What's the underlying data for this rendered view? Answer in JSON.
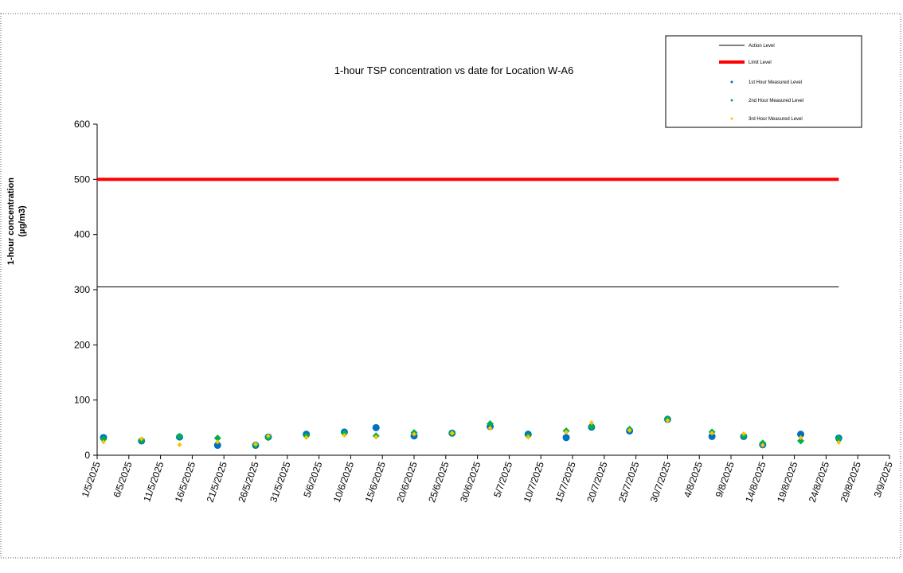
{
  "chart_data": {
    "type": "scatter",
    "title": "1-hour TSP concentration vs date for Location  W-A6",
    "ylabel": [
      "1-hour concentration",
      "(µg/m3)"
    ],
    "xlim": [
      "2025-05-01",
      "2025-09-03"
    ],
    "xticks": [
      {
        "value": "2025-05-01",
        "label": "1/5/2025"
      },
      {
        "value": "2025-05-06",
        "label": "6/5/2025"
      },
      {
        "value": "2025-05-11",
        "label": "11/5/2025"
      },
      {
        "value": "2025-05-16",
        "label": "16/5/2025"
      },
      {
        "value": "2025-05-21",
        "label": "21/5/2025"
      },
      {
        "value": "2025-05-26",
        "label": "26/5/2025"
      },
      {
        "value": "2025-05-31",
        "label": "31/5/2025"
      },
      {
        "value": "2025-06-05",
        "label": "5/6/2025"
      },
      {
        "value": "2025-06-10",
        "label": "10/6/2025"
      },
      {
        "value": "2025-06-15",
        "label": "15/6/2025"
      },
      {
        "value": "2025-06-20",
        "label": "20/6/2025"
      },
      {
        "value": "2025-06-25",
        "label": "25/6/2025"
      },
      {
        "value": "2025-06-30",
        "label": "30/6/2025"
      },
      {
        "value": "2025-07-05",
        "label": "5/7/2025"
      },
      {
        "value": "2025-07-10",
        "label": "10/7/2025"
      },
      {
        "value": "2025-07-15",
        "label": "15/7/2025"
      },
      {
        "value": "2025-07-20",
        "label": "20/7/2025"
      },
      {
        "value": "2025-07-25",
        "label": "25/7/2025"
      },
      {
        "value": "2025-07-30",
        "label": "30/7/2025"
      },
      {
        "value": "2025-08-04",
        "label": "4/8/2025"
      },
      {
        "value": "2025-08-09",
        "label": "9/8/2025"
      },
      {
        "value": "2025-08-14",
        "label": "14/8/2025"
      },
      {
        "value": "2025-08-19",
        "label": "19/8/2025"
      },
      {
        "value": "2025-08-24",
        "label": "24/8/2025"
      },
      {
        "value": "2025-08-29",
        "label": "29/8/2025"
      },
      {
        "value": "2025-09-03",
        "label": "3/9/2025"
      }
    ],
    "ylim": [
      0,
      600
    ],
    "yticks": [
      0,
      100,
      200,
      300,
      400,
      500,
      600
    ],
    "grid": false,
    "legend": "top-right",
    "series": [
      {
        "name": "Action Level",
        "color": "#000000",
        "marker": "line",
        "line_width": 1,
        "x": [
          "2025-05-01",
          "2025-08-26"
        ],
        "values": [
          305,
          305
        ]
      },
      {
        "name": "Limit Level",
        "color": "#ff0000",
        "marker": "line",
        "line_width": 4,
        "x": [
          "2025-05-01",
          "2025-08-26"
        ],
        "values": [
          500,
          500
        ]
      },
      {
        "name": "1st Hour Measured Level",
        "color": "#0070c0",
        "marker": "circle",
        "x": [
          "2025-05-02",
          "2025-05-08",
          "2025-05-14",
          "2025-05-20",
          "2025-05-26",
          "2025-05-28",
          "2025-06-03",
          "2025-06-09",
          "2025-06-14",
          "2025-06-20",
          "2025-06-26",
          "2025-07-02",
          "2025-07-08",
          "2025-07-14",
          "2025-07-18",
          "2025-07-24",
          "2025-07-30",
          "2025-08-06",
          "2025-08-11",
          "2025-08-14",
          "2025-08-20",
          "2025-08-26"
        ],
        "values": [
          32,
          26,
          33,
          18,
          18,
          33,
          38,
          42,
          50,
          35,
          40,
          52,
          38,
          32,
          51,
          44,
          65,
          34,
          34,
          19,
          38,
          31
        ]
      },
      {
        "name": "2nd Hour Measured Level",
        "color": "#00b050",
        "marker": "diamond",
        "x": [
          "2025-05-02",
          "2025-05-08",
          "2025-05-14",
          "2025-05-20",
          "2025-05-26",
          "2025-05-28",
          "2025-06-03",
          "2025-06-09",
          "2025-06-14",
          "2025-06-20",
          "2025-06-26",
          "2025-07-02",
          "2025-07-08",
          "2025-07-14",
          "2025-07-18",
          "2025-07-24",
          "2025-07-30",
          "2025-08-06",
          "2025-08-11",
          "2025-08-14",
          "2025-08-20",
          "2025-08-26"
        ],
        "values": [
          29,
          27,
          34,
          31,
          19,
          32,
          35,
          40,
          35,
          41,
          40,
          57,
          35,
          44,
          52,
          47,
          66,
          42,
          35,
          22,
          26,
          30
        ]
      },
      {
        "name": "3rd Hour Measured Level",
        "color": "#ffc000",
        "marker": "small-diamond",
        "x": [
          "2025-05-02",
          "2025-05-08",
          "2025-05-14",
          "2025-05-20",
          "2025-05-26",
          "2025-05-28",
          "2025-06-03",
          "2025-06-09",
          "2025-06-14",
          "2025-06-20",
          "2025-06-26",
          "2025-07-02",
          "2025-07-08",
          "2025-07-14",
          "2025-07-18",
          "2025-07-24",
          "2025-07-30",
          "2025-08-06",
          "2025-08-11",
          "2025-08-14",
          "2025-08-20",
          "2025-08-26"
        ],
        "values": [
          24,
          30,
          19,
          24,
          20,
          35,
          32,
          36,
          33,
          38,
          40,
          49,
          33,
          42,
          59,
          45,
          63,
          40,
          39,
          18,
          32,
          23
        ]
      }
    ]
  }
}
